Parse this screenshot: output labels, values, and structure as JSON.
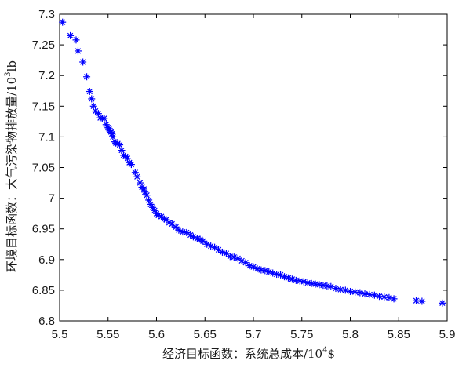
{
  "chart_data": {
    "type": "scatter",
    "xlabel_main": "经济目标函数：系统总成本/10",
    "xlabel_sup": "4",
    "xlabel_tail": "$",
    "ylabel_main": "环境目标函数：大气污染物排放量/10",
    "ylabel_sup": "3",
    "ylabel_tail": "lb",
    "xlim": [
      5.5,
      5.9
    ],
    "ylim": [
      6.8,
      7.3
    ],
    "x_ticks": [
      "5.5",
      "5.55",
      "5.6",
      "5.65",
      "5.7",
      "5.75",
      "5.8",
      "5.85",
      "5.9"
    ],
    "y_ticks": [
      "6.8",
      "6.85",
      "6.9",
      "6.95",
      "7",
      "7.05",
      "7.1",
      "7.15",
      "7.2",
      "7.25",
      "7.3"
    ],
    "x_tick_values": [
      5.5,
      5.55,
      5.6,
      5.65,
      5.7,
      5.75,
      5.8,
      5.85,
      5.9
    ],
    "y_tick_values": [
      6.8,
      6.85,
      6.9,
      6.95,
      7.0,
      7.05,
      7.1,
      7.15,
      7.2,
      7.25,
      7.3
    ],
    "grid": false,
    "marker": "asterisk",
    "marker_color": "#0000ff",
    "series": [
      {
        "values": [
          [
            5.503,
            7.287
          ],
          [
            5.511,
            7.265
          ],
          [
            5.517,
            7.258
          ],
          [
            5.519,
            7.24
          ],
          [
            5.524,
            7.222
          ],
          [
            5.528,
            7.198
          ],
          [
            5.531,
            7.174
          ],
          [
            5.533,
            7.162
          ],
          [
            5.535,
            7.15
          ],
          [
            5.537,
            7.142
          ],
          [
            5.54,
            7.138
          ],
          [
            5.542,
            7.131
          ],
          [
            5.544,
            7.13
          ],
          [
            5.546,
            7.13
          ],
          [
            5.548,
            7.12
          ],
          [
            5.55,
            7.115
          ],
          [
            5.551,
            7.113
          ],
          [
            5.552,
            7.11
          ],
          [
            5.553,
            7.108
          ],
          [
            5.554,
            7.105
          ],
          [
            5.555,
            7.1
          ],
          [
            5.557,
            7.092
          ],
          [
            5.558,
            7.09
          ],
          [
            5.56,
            7.089
          ],
          [
            5.562,
            7.087
          ],
          [
            5.564,
            7.078
          ],
          [
            5.566,
            7.07
          ],
          [
            5.568,
            7.068
          ],
          [
            5.57,
            7.065
          ],
          [
            5.572,
            7.058
          ],
          [
            5.574,
            7.055
          ],
          [
            5.578,
            7.042
          ],
          [
            5.58,
            7.035
          ],
          [
            5.583,
            7.025
          ],
          [
            5.585,
            7.018
          ],
          [
            5.587,
            7.015
          ],
          [
            5.588,
            7.01
          ],
          [
            5.59,
            7.005
          ],
          [
            5.592,
            6.997
          ],
          [
            5.594,
            6.99
          ],
          [
            5.596,
            6.985
          ],
          [
            5.598,
            6.98
          ],
          [
            5.6,
            6.975
          ],
          [
            5.602,
            6.972
          ],
          [
            5.605,
            6.97
          ],
          [
            5.608,
            6.966
          ],
          [
            5.61,
            6.965
          ],
          [
            5.613,
            6.96
          ],
          [
            5.616,
            6.958
          ],
          [
            5.62,
            6.953
          ],
          [
            5.623,
            6.948
          ],
          [
            5.627,
            6.945
          ],
          [
            5.631,
            6.944
          ],
          [
            5.635,
            6.94
          ],
          [
            5.638,
            6.937
          ],
          [
            5.642,
            6.934
          ],
          [
            5.645,
            6.933
          ],
          [
            5.648,
            6.93
          ],
          [
            5.652,
            6.925
          ],
          [
            5.656,
            6.922
          ],
          [
            5.66,
            6.92
          ],
          [
            5.664,
            6.916
          ],
          [
            5.668,
            6.912
          ],
          [
            5.672,
            6.91
          ],
          [
            5.676,
            6.905
          ],
          [
            5.68,
            6.904
          ],
          [
            5.684,
            6.902
          ],
          [
            5.688,
            6.898
          ],
          [
            5.692,
            6.895
          ],
          [
            5.696,
            6.89
          ],
          [
            5.7,
            6.888
          ],
          [
            5.704,
            6.885
          ],
          [
            5.708,
            6.883
          ],
          [
            5.712,
            6.882
          ],
          [
            5.716,
            6.88
          ],
          [
            5.72,
            6.878
          ],
          [
            5.724,
            6.876
          ],
          [
            5.728,
            6.875
          ],
          [
            5.732,
            6.872
          ],
          [
            5.736,
            6.87
          ],
          [
            5.74,
            6.868
          ],
          [
            5.744,
            6.866
          ],
          [
            5.748,
            6.865
          ],
          [
            5.752,
            6.864
          ],
          [
            5.756,
            6.862
          ],
          [
            5.76,
            6.861
          ],
          [
            5.764,
            6.86
          ],
          [
            5.768,
            6.859
          ],
          [
            5.772,
            6.858
          ],
          [
            5.776,
            6.857
          ],
          [
            5.78,
            6.856
          ],
          [
            5.785,
            6.853
          ],
          [
            5.79,
            6.851
          ],
          [
            5.795,
            6.85
          ],
          [
            5.8,
            6.848
          ],
          [
            5.805,
            6.847
          ],
          [
            5.81,
            6.846
          ],
          [
            5.815,
            6.844
          ],
          [
            5.82,
            6.843
          ],
          [
            5.825,
            6.842
          ],
          [
            5.83,
            6.84
          ],
          [
            5.835,
            6.839
          ],
          [
            5.84,
            6.838
          ],
          [
            5.845,
            6.836
          ],
          [
            5.868,
            6.833
          ],
          [
            5.874,
            6.832
          ],
          [
            5.895,
            6.829
          ]
        ]
      }
    ]
  }
}
